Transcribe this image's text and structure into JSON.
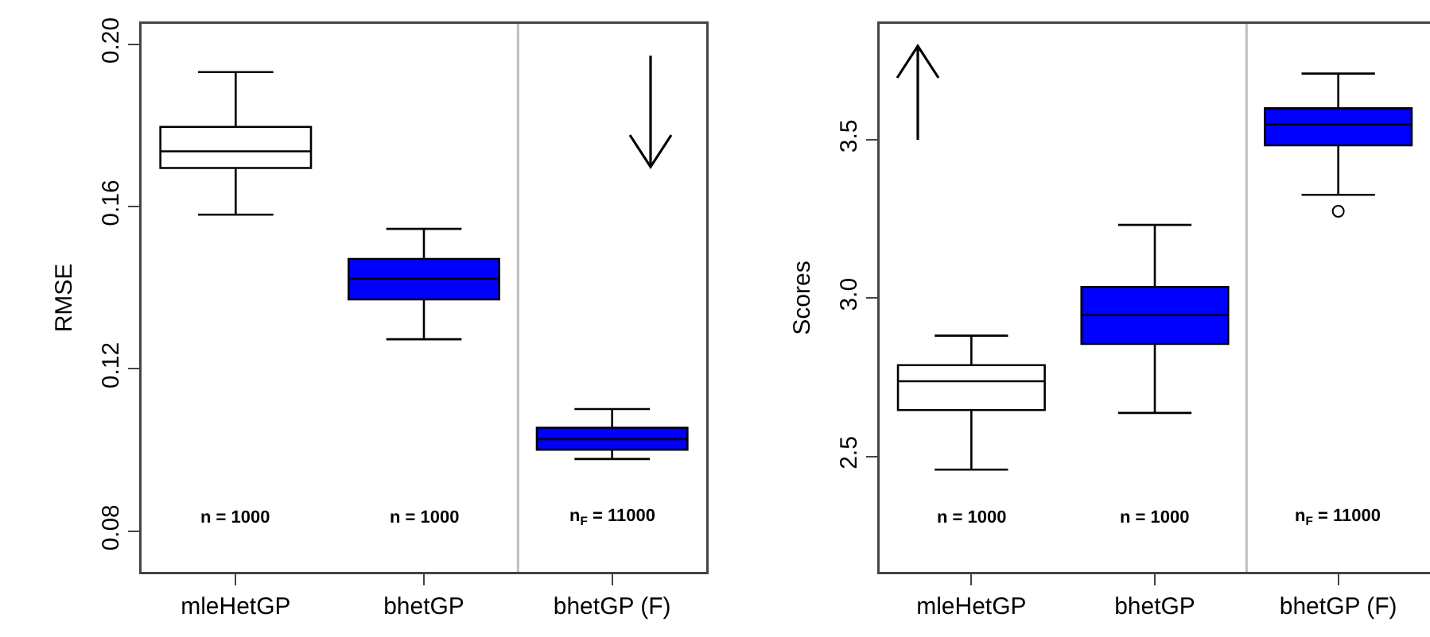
{
  "chart_data": [
    {
      "type": "box",
      "ylabel": "RMSE",
      "categories": [
        "mleHetGP",
        "bhetGP",
        "bhetGP (F)"
      ],
      "colors": [
        "#ffffff",
        "#0000ff",
        "#0000ff"
      ],
      "boxes": [
        {
          "low": 0.158,
          "q1": 0.1695,
          "median": 0.1736,
          "q3": 0.1796,
          "high": 0.1931
        },
        {
          "low": 0.1273,
          "q1": 0.1371,
          "median": 0.1422,
          "q3": 0.1471,
          "high": 0.1545
        },
        {
          "low": 0.0978,
          "q1": 0.1001,
          "median": 0.1027,
          "q3": 0.1055,
          "high": 0.1101
        }
      ],
      "ylim": [
        0.07,
        0.205
      ],
      "yticks": [
        0.08,
        0.12,
        0.16,
        {
          "value": 0.2,
          "label": "0.20"
        }
      ],
      "grid": false,
      "annotations": [
        "n = 1000",
        "n = 1000",
        "n$_{F}$ = 11000"
      ]
    },
    {
      "type": "box",
      "ylabel": "Scores",
      "categories": [
        "mleHetGP",
        "bhetGP",
        "bhetGP (F)"
      ],
      "colors": [
        "#ffffff",
        "#0000ff",
        "#0000ff"
      ],
      "boxes": [
        {
          "low": 2.458,
          "q1": 2.646,
          "median": 2.737,
          "q3": 2.788,
          "high": 2.881
        },
        {
          "low": 2.637,
          "q1": 2.855,
          "median": 2.946,
          "q3": 3.035,
          "high": 3.231
        },
        {
          "low": 3.326,
          "q1": 3.482,
          "median": 3.548,
          "q3": 3.599,
          "high": 3.709,
          "outliers": [
            3.274
          ]
        }
      ],
      "ylim": [
        2.135,
        3.866
      ],
      "yticks": [
        2.5,
        {
          "value": 3,
          "label": "3.0"
        },
        3.5
      ],
      "grid": false,
      "annotations": [
        "n = 1000",
        "n = 1000",
        "n$_{F}$ = 11000"
      ]
    }
  ]
}
